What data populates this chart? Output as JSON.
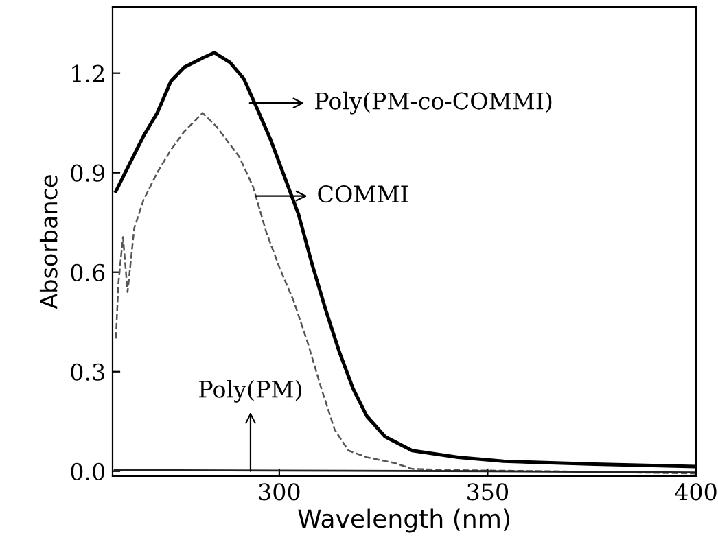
{
  "chart_data": {
    "type": "line",
    "xlabel": "Wavelength (nm)",
    "ylabel": "Absorbance",
    "xlim": [
      260,
      400
    ],
    "ylim": [
      -0.015,
      1.4
    ],
    "xticks": [
      300,
      350,
      400
    ],
    "yticks": [
      {
        "value": 0,
        "label": "0.0"
      },
      0.3,
      0.6,
      0.9,
      1.2
    ],
    "grid": false,
    "marker": "none",
    "series": [
      {
        "color": "#000000",
        "line_style": "solid",
        "x": [
          260.8,
          264.1,
          267.4,
          270.7,
          274.0,
          277.2,
          281.6,
          284.4,
          288.2,
          291.5,
          294.7,
          298.0,
          301.3,
          304.6,
          307.9,
          311.2,
          314.4,
          317.7,
          321.0,
          325.4,
          331.9,
          342.9,
          353.8,
          375.7,
          399.8
        ],
        "values": [
          0.844,
          0.927,
          1.01,
          1.08,
          1.176,
          1.218,
          1.246,
          1.262,
          1.232,
          1.183,
          1.093,
          0.997,
          0.886,
          0.775,
          0.623,
          0.484,
          0.36,
          0.249,
          0.166,
          0.104,
          0.062,
          0.042,
          0.03,
          0.021,
          0.014
        ]
      },
      {
        "color": "#555555",
        "line_style": "dashed",
        "x": [
          260.8,
          261.4,
          262.5,
          263.6,
          265.2,
          267.4,
          270.7,
          274.0,
          277.2,
          281.6,
          285.0,
          290.4,
          293.7,
          296.9,
          300.2,
          303.5,
          306.8,
          310.1,
          313.3,
          316.6,
          321.0,
          327.6,
          331.9,
          342.9,
          364.8,
          399.8
        ],
        "values": [
          0.4,
          0.567,
          0.706,
          0.54,
          0.733,
          0.817,
          0.9,
          0.969,
          1.024,
          1.08,
          1.038,
          0.948,
          0.858,
          0.72,
          0.609,
          0.512,
          0.388,
          0.249,
          0.125,
          0.062,
          0.042,
          0.025,
          0.007,
          0.003,
          0.0,
          -0.007
        ]
      },
      {
        "color": "#222222",
        "line_style": "solid",
        "x": [
          260.5,
          300,
          350,
          399.8
        ],
        "values": [
          0.003,
          0.002,
          0.0,
          -0.004
        ]
      }
    ],
    "annotations": [
      "Poly(PM-co-COMMI)",
      "COMMI",
      {
        "text": "Poly(PM)",
        "x": 293.1,
        "y": 0.0
      }
    ]
  }
}
